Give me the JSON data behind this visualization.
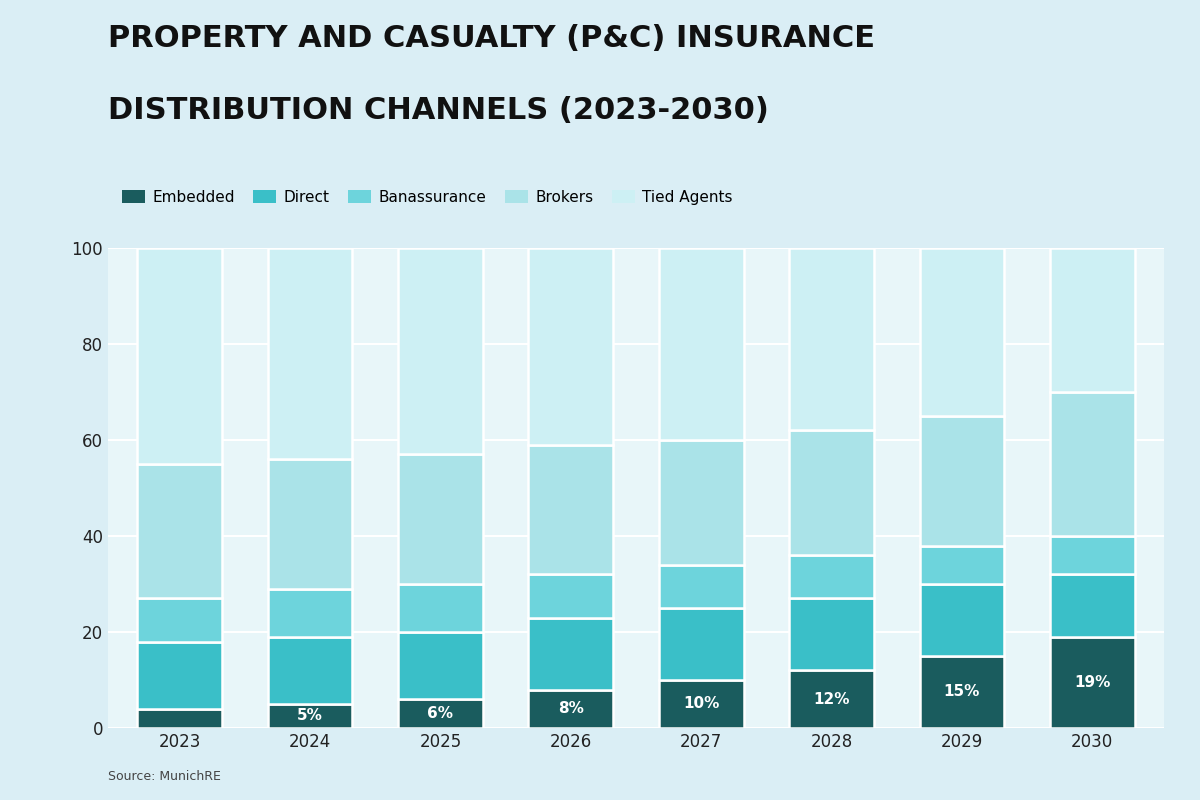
{
  "title_line1": "PROPERTY AND CASUALTY (P&C) INSURANCE",
  "title_line2": "DISTRIBUTION CHANNELS (2023-2030)",
  "years": [
    "2023",
    "2024",
    "2025",
    "2026",
    "2027",
    "2028",
    "2029",
    "2030"
  ],
  "categories": [
    "Embedded",
    "Direct",
    "Banassurance",
    "Brokers",
    "Tied Agents"
  ],
  "colors": [
    "#1a5c5e",
    "#3abfc8",
    "#6dd4dc",
    "#aae3e8",
    "#cdf0f4"
  ],
  "data": {
    "Embedded": [
      4,
      5,
      6,
      8,
      10,
      12,
      15,
      19
    ],
    "Direct": [
      14,
      14,
      14,
      15,
      15,
      15,
      15,
      13
    ],
    "Banassurance": [
      9,
      10,
      10,
      9,
      9,
      9,
      8,
      8
    ],
    "Brokers": [
      28,
      27,
      27,
      27,
      26,
      26,
      27,
      30
    ],
    "Tied Agents": [
      45,
      44,
      43,
      41,
      40,
      38,
      35,
      30
    ]
  },
  "embedded_labels": [
    "",
    "5%",
    "6%",
    "8%",
    "10%",
    "12%",
    "15%",
    "19%"
  ],
  "background_color": "#daeef5",
  "plot_bg_color": "#e8f6f9",
  "source_text": "Source: MunichRE",
  "ylim": [
    0,
    100
  ],
  "yticks": [
    0,
    20,
    40,
    60,
    80,
    100
  ],
  "bar_width": 0.65,
  "title_fontsize": 22,
  "tick_fontsize": 12,
  "legend_fontsize": 11,
  "label_fontsize": 11
}
